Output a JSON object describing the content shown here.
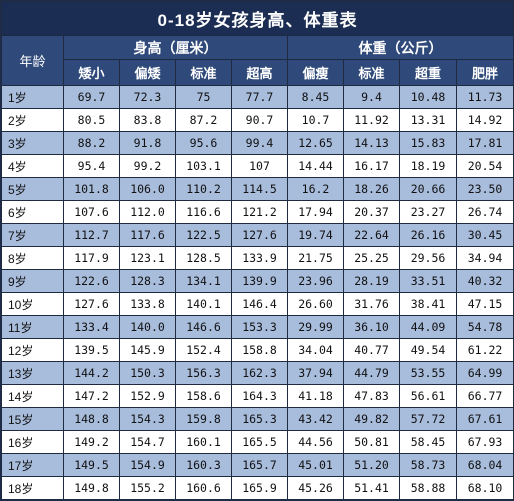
{
  "title": "0-18岁女孩身高、体重表",
  "age_header": "年龄",
  "height_group": "身高（厘米）",
  "weight_group": "体重（公斤）",
  "height_cols": [
    "矮小",
    "偏矮",
    "标准",
    "超高"
  ],
  "weight_cols": [
    "偏瘦",
    "标准",
    "超重",
    "肥胖"
  ],
  "colors": {
    "title_bg": "#1b2d52",
    "header_bg": "#2f4a7a",
    "row_stripe": "#a8bcdc",
    "grid_line": "#1e2a40"
  },
  "rows": [
    {
      "age": "1岁",
      "h": [
        "69.7",
        "72.3",
        "75",
        "77.7"
      ],
      "w": [
        "8.45",
        "9.4",
        "10.48",
        "11.73"
      ]
    },
    {
      "age": "2岁",
      "h": [
        "80.5",
        "83.8",
        "87.2",
        "90.7"
      ],
      "w": [
        "10.7",
        "11.92",
        "13.31",
        "14.92"
      ]
    },
    {
      "age": "3岁",
      "h": [
        "88.2",
        "91.8",
        "95.6",
        "99.4"
      ],
      "w": [
        "12.65",
        "14.13",
        "15.83",
        "17.81"
      ]
    },
    {
      "age": "4岁",
      "h": [
        "95.4",
        "99.2",
        "103.1",
        "107"
      ],
      "w": [
        "14.44",
        "16.17",
        "18.19",
        "20.54"
      ]
    },
    {
      "age": "5岁",
      "h": [
        "101.8",
        "106.0",
        "110.2",
        "114.5"
      ],
      "w": [
        "16.2",
        "18.26",
        "20.66",
        "23.50"
      ]
    },
    {
      "age": "6岁",
      "h": [
        "107.6",
        "112.0",
        "116.6",
        "121.2"
      ],
      "w": [
        "17.94",
        "20.37",
        "23.27",
        "26.74"
      ]
    },
    {
      "age": "7岁",
      "h": [
        "112.7",
        "117.6",
        "122.5",
        "127.6"
      ],
      "w": [
        "19.74",
        "22.64",
        "26.16",
        "30.45"
      ]
    },
    {
      "age": "8岁",
      "h": [
        "117.9",
        "123.1",
        "128.5",
        "133.9"
      ],
      "w": [
        "21.75",
        "25.25",
        "29.56",
        "34.94"
      ]
    },
    {
      "age": "9岁",
      "h": [
        "122.6",
        "128.3",
        "134.1",
        "139.9"
      ],
      "w": [
        "23.96",
        "28.19",
        "33.51",
        "40.32"
      ]
    },
    {
      "age": "10岁",
      "h": [
        "127.6",
        "133.8",
        "140.1",
        "146.4"
      ],
      "w": [
        "26.60",
        "31.76",
        "38.41",
        "47.15"
      ]
    },
    {
      "age": "11岁",
      "h": [
        "133.4",
        "140.0",
        "146.6",
        "153.3"
      ],
      "w": [
        "29.99",
        "36.10",
        "44.09",
        "54.78"
      ]
    },
    {
      "age": "12岁",
      "h": [
        "139.5",
        "145.9",
        "152.4",
        "158.8"
      ],
      "w": [
        "34.04",
        "40.77",
        "49.54",
        "61.22"
      ]
    },
    {
      "age": "13岁",
      "h": [
        "144.2",
        "150.3",
        "156.3",
        "162.3"
      ],
      "w": [
        "37.94",
        "44.79",
        "53.55",
        "64.99"
      ]
    },
    {
      "age": "14岁",
      "h": [
        "147.2",
        "152.9",
        "158.6",
        "164.3"
      ],
      "w": [
        "41.18",
        "47.83",
        "56.61",
        "66.77"
      ]
    },
    {
      "age": "15岁",
      "h": [
        "148.8",
        "154.3",
        "159.8",
        "165.3"
      ],
      "w": [
        "43.42",
        "49.82",
        "57.72",
        "67.61"
      ]
    },
    {
      "age": "16岁",
      "h": [
        "149.2",
        "154.7",
        "160.1",
        "165.5"
      ],
      "w": [
        "44.56",
        "50.81",
        "58.45",
        "67.93"
      ]
    },
    {
      "age": "17岁",
      "h": [
        "149.5",
        "154.9",
        "160.3",
        "165.7"
      ],
      "w": [
        "45.01",
        "51.20",
        "58.73",
        "68.04"
      ]
    },
    {
      "age": "18岁",
      "h": [
        "149.8",
        "155.2",
        "160.6",
        "165.9"
      ],
      "w": [
        "45.26",
        "51.41",
        "58.88",
        "68.10"
      ]
    }
  ]
}
